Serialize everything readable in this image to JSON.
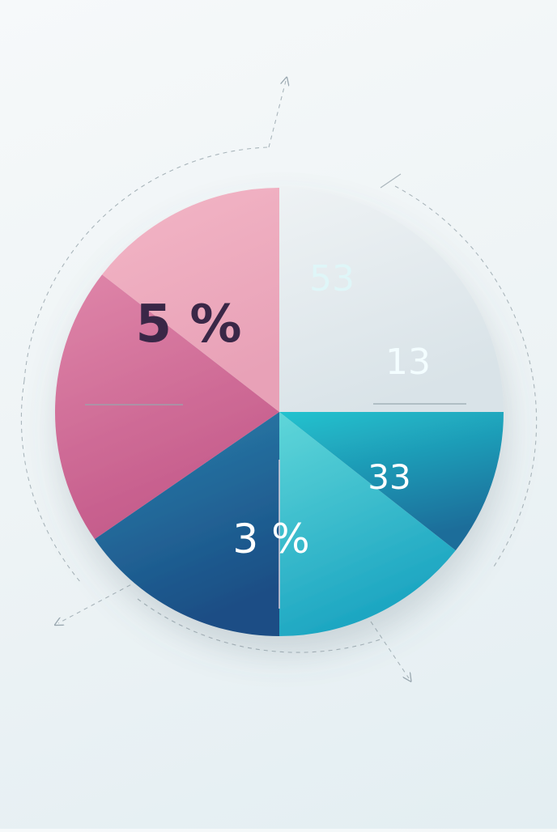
{
  "chart_data": {
    "type": "pie",
    "slices": [
      {
        "label": "5 %",
        "value": 25,
        "color_top": "#eef2f4",
        "color_bottom": "#d9e3e8",
        "text_color": "#3a2747"
      },
      {
        "label": "53",
        "value": 10.6,
        "color_top": "#22c3cf",
        "color_bottom": "#1b6d9a",
        "text_color": "#dff6f8"
      },
      {
        "label": "13",
        "value": 14.4,
        "color_top": "#5fd6d9",
        "color_bottom": "#1aa4c1",
        "text_color": "#f3fdff"
      },
      {
        "label": "33",
        "value": 15.4,
        "color_top": "#2b82ad",
        "color_bottom": "#1a4e85",
        "text_color": "#ffffff"
      },
      {
        "label": "3 %",
        "value": 20.1,
        "color_top": "#df86a9",
        "color_bottom": "#c45a8a",
        "text_color": "#ffffff"
      },
      {
        "label": "",
        "value": 14.5,
        "color_top": "#f3b6c6",
        "color_bottom": "#e8a1b7",
        "text_color": "#ffffff"
      }
    ]
  },
  "colors": {
    "background": "#eef4f6",
    "guide_line": "#9aa8b0",
    "divider_line": "#8fa0a8"
  }
}
